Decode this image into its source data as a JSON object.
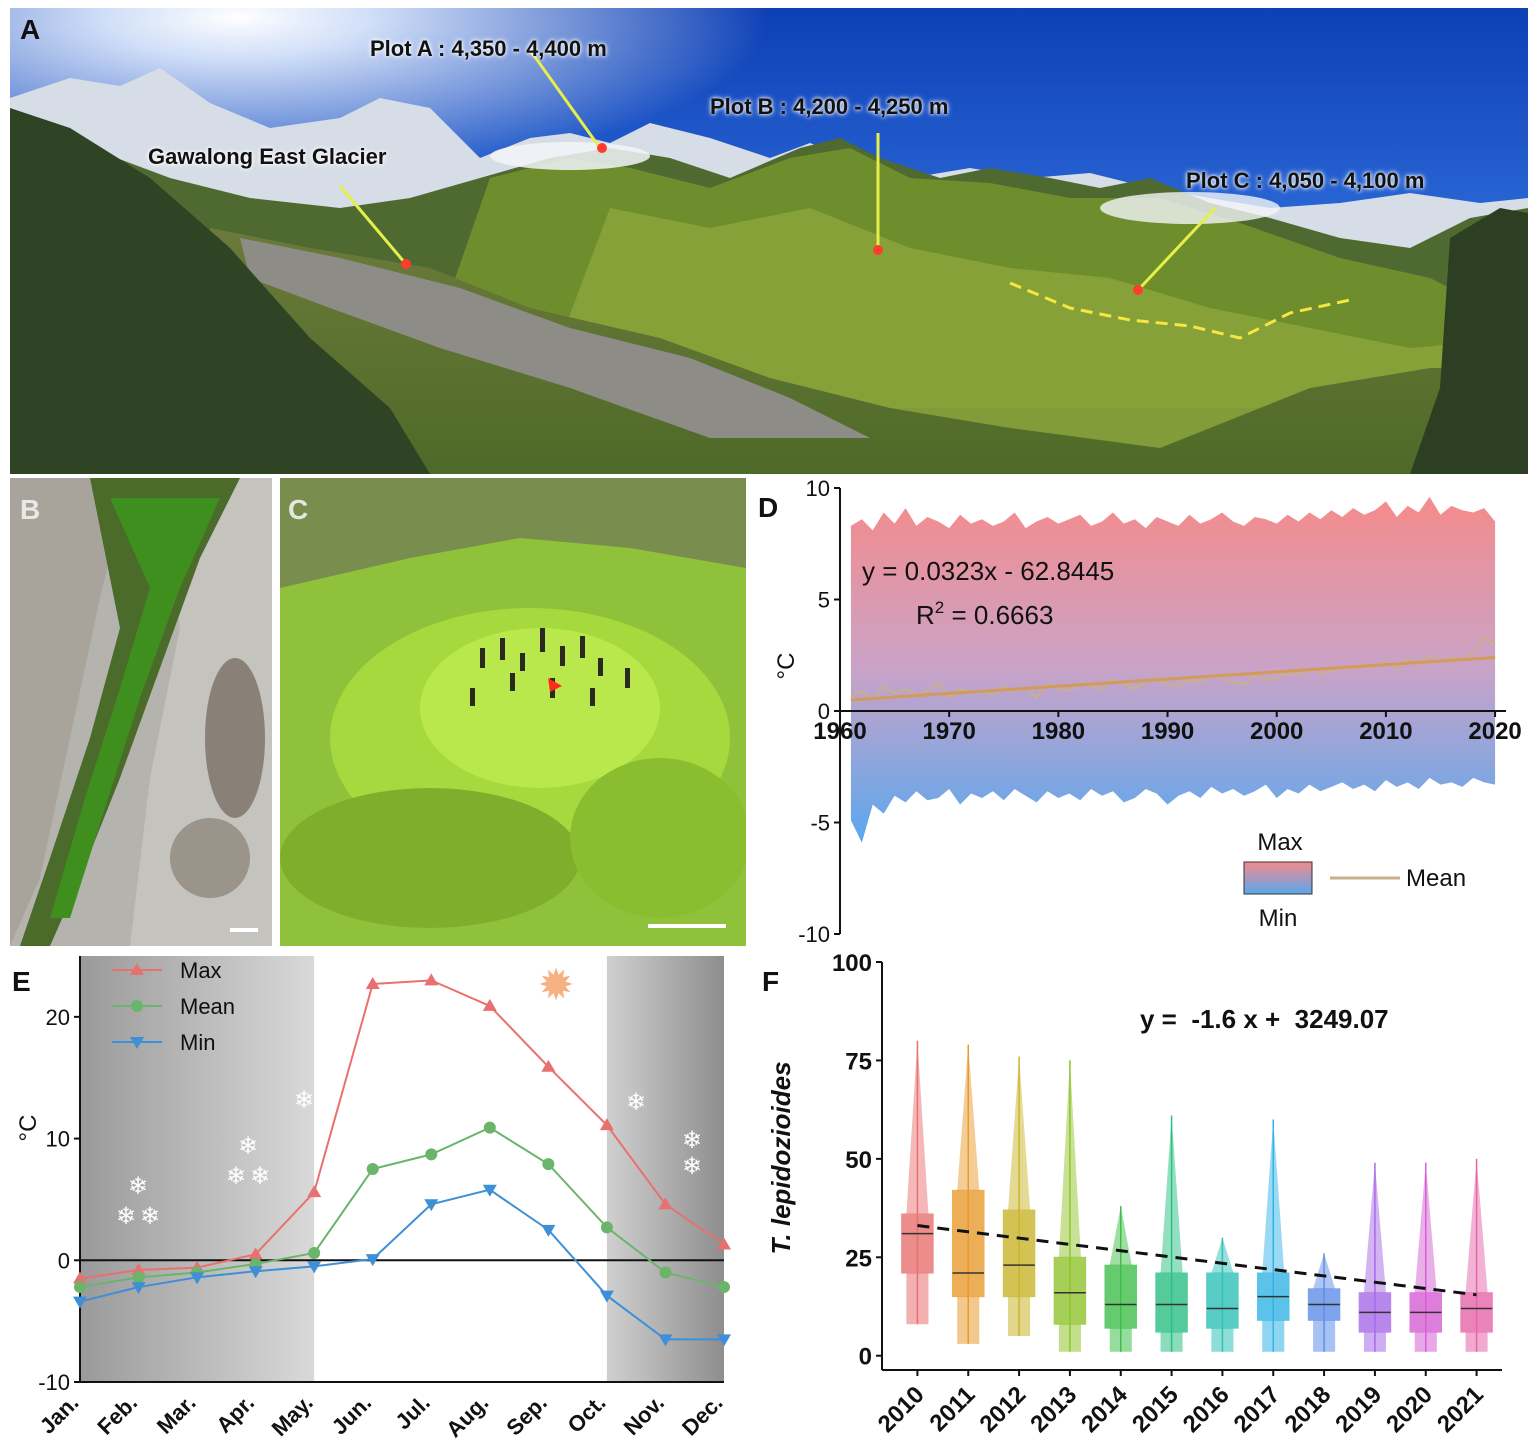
{
  "panels": {
    "a": "A",
    "b": "B",
    "c": "C",
    "d": "D",
    "e": "E",
    "f": "F"
  },
  "panelA": {
    "labels": {
      "plotA": "Plot A : 4,350 - 4,400 m",
      "plotB": "Plot B : 4,200 - 4,250 m",
      "plotC": "Plot C : 4,050 - 4,100 m",
      "glacier": "Gawalong East Glacier"
    }
  },
  "colors": {
    "max": "#e8716f",
    "mean": "#6ab56a",
    "min": "#3e8fd6",
    "trendD": "#d49a5a",
    "sky": "#1f56c9",
    "moss": "#7bbf2a"
  },
  "chart_data": [
    {
      "id": "D",
      "type": "area",
      "x": [
        1961,
        1962,
        1963,
        1964,
        1965,
        1966,
        1967,
        1968,
        1969,
        1970,
        1971,
        1972,
        1973,
        1974,
        1975,
        1976,
        1977,
        1978,
        1979,
        1980,
        1981,
        1982,
        1983,
        1984,
        1985,
        1986,
        1987,
        1988,
        1989,
        1990,
        1991,
        1992,
        1993,
        1994,
        1995,
        1996,
        1997,
        1998,
        1999,
        2000,
        2001,
        2002,
        2003,
        2004,
        2005,
        2006,
        2007,
        2008,
        2009,
        2010,
        2011,
        2012,
        2013,
        2014,
        2015,
        2016,
        2017,
        2018,
        2019,
        2020
      ],
      "series": [
        {
          "name": "Max",
          "values": [
            8.3,
            8.6,
            8.1,
            8.9,
            8.4,
            9.1,
            8.3,
            8.7,
            8.5,
            8.2,
            8.8,
            8.4,
            8.6,
            8.3,
            8.5,
            8.9,
            8.2,
            8.5,
            8.7,
            8.4,
            8.6,
            8.8,
            8.3,
            8.5,
            8.9,
            8.4,
            8.6,
            8.2,
            8.7,
            8.5,
            8.3,
            8.8,
            8.4,
            8.6,
            8.9,
            8.5,
            8.3,
            8.7,
            8.6,
            8.4,
            8.8,
            8.5,
            8.9,
            8.6,
            9.0,
            8.7,
            9.1,
            8.8,
            9.0,
            9.4,
            8.7,
            9.2,
            8.9,
            9.6,
            8.8,
            9.2,
            9.0,
            8.9,
            9.1,
            8.5
          ]
        },
        {
          "name": "Mean",
          "values": [
            0.6,
            0.9,
            0.5,
            1.1,
            0.8,
            1.0,
            0.7,
            0.9,
            1.3,
            0.6,
            1.0,
            0.8,
            0.9,
            0.7,
            1.1,
            0.9,
            1.0,
            0.6,
            1.2,
            1.0,
            0.9,
            1.3,
            1.1,
            1.0,
            1.4,
            1.2,
            1.0,
            1.3,
            1.5,
            1.2,
            1.1,
            1.4,
            1.3,
            1.6,
            1.5,
            1.3,
            1.2,
            1.6,
            1.4,
            1.5,
            1.7,
            1.6,
            1.9,
            1.7,
            1.8,
            2.0,
            1.9,
            2.1,
            2.0,
            2.2,
            1.9,
            2.3,
            2.1,
            2.5,
            2.2,
            2.4,
            2.3,
            2.6,
            3.3,
            3.0
          ]
        },
        {
          "name": "Min",
          "values": [
            -4.9,
            -5.9,
            -4.2,
            -4.6,
            -3.8,
            -4.1,
            -3.6,
            -4.0,
            -3.9,
            -3.5,
            -4.2,
            -3.7,
            -3.9,
            -3.6,
            -4.0,
            -3.5,
            -3.8,
            -4.1,
            -3.6,
            -3.9,
            -3.7,
            -4.0,
            -3.5,
            -3.8,
            -3.6,
            -4.1,
            -3.9,
            -3.5,
            -3.7,
            -4.2,
            -3.8,
            -3.6,
            -3.9,
            -3.4,
            -3.7,
            -3.5,
            -3.8,
            -3.6,
            -3.3,
            -3.9,
            -3.5,
            -3.7,
            -3.3,
            -3.6,
            -3.4,
            -3.2,
            -3.5,
            -3.3,
            -3.6,
            -3.1,
            -3.4,
            -3.2,
            -3.5,
            -3.0,
            -3.3,
            -3.2,
            -3.4,
            -3.0,
            -3.2,
            -3.3
          ]
        }
      ],
      "trend": {
        "slope": 0.0323,
        "intercept": -62.8445
      },
      "equation": "y = 0.0323x - 62.8445",
      "r2_prefix": "R",
      "r2_sup": "2",
      "r2_value": " = 0.6663",
      "ylabel": "°C",
      "xlim": [
        1960,
        2021
      ],
      "ylim": [
        -10,
        10
      ],
      "xticks": [
        1960,
        1970,
        1980,
        1990,
        2000,
        2010,
        2020
      ],
      "yticks": [
        10,
        5,
        0,
        -5,
        -10
      ],
      "legend": {
        "max": "Max",
        "min": "Min",
        "mean": "Mean"
      },
      "legend_position": "bottom-right"
    },
    {
      "id": "E",
      "type": "line",
      "categories": [
        "Jan.",
        "Feb.",
        "Mar.",
        "Apr.",
        "May.",
        "Jun.",
        "Jul.",
        "Aug.",
        "Sep.",
        "Oct.",
        "Nov.",
        "Dec."
      ],
      "series": [
        {
          "name": "Max",
          "marker": "triangle-up",
          "values": [
            -1.5,
            -0.8,
            -0.6,
            0.5,
            5.6,
            22.7,
            23.0,
            20.9,
            15.9,
            11.1,
            4.6,
            1.3
          ]
        },
        {
          "name": "Mean",
          "marker": "circle",
          "values": [
            -2.2,
            -1.4,
            -1.0,
            -0.3,
            0.6,
            7.5,
            8.7,
            10.9,
            7.9,
            2.7,
            -1.0,
            -2.2
          ]
        },
        {
          "name": "Min",
          "marker": "triangle-down",
          "values": [
            -3.4,
            -2.2,
            -1.4,
            -0.9,
            -0.5,
            0.1,
            4.6,
            5.8,
            2.5,
            -2.9,
            -6.5,
            -6.5
          ]
        }
      ],
      "ylabel": "°C",
      "ylim": [
        -10,
        25
      ],
      "yticks": [
        20,
        10,
        0,
        -10
      ],
      "shaded_months": [
        "Jan.",
        "Feb.",
        "Mar.",
        "Apr.",
        "May.",
        "Oct.",
        "Nov.",
        "Dec."
      ],
      "legend_position": "top-left"
    },
    {
      "id": "F",
      "type": "box",
      "categories": [
        "2010",
        "2011",
        "2012",
        "2013",
        "2014",
        "2015",
        "2016",
        "2017",
        "2018",
        "2019",
        "2020",
        "2021"
      ],
      "box_colors": [
        "#e8716f",
        "#e89a2e",
        "#c9b52a",
        "#8fc42c",
        "#3fbf4a",
        "#2bbf84",
        "#2fc1b8",
        "#33b3e6",
        "#5f8ee8",
        "#a76ae8",
        "#d65fd4",
        "#e665a8"
      ],
      "stats": [
        {
          "min": 8,
          "q1": 21,
          "median": 31,
          "q3": 36,
          "max": 80
        },
        {
          "min": 3,
          "q1": 15,
          "median": 21,
          "q3": 42,
          "max": 79
        },
        {
          "min": 5,
          "q1": 15,
          "median": 23,
          "q3": 37,
          "max": 76
        },
        {
          "min": 1,
          "q1": 8,
          "median": 16,
          "q3": 25,
          "max": 75
        },
        {
          "min": 1,
          "q1": 7,
          "median": 13,
          "q3": 23,
          "max": 38
        },
        {
          "min": 1,
          "q1": 6,
          "median": 13,
          "q3": 21,
          "max": 61
        },
        {
          "min": 1,
          "q1": 7,
          "median": 12,
          "q3": 21,
          "max": 30
        },
        {
          "min": 1,
          "q1": 9,
          "median": 15,
          "q3": 21,
          "max": 60
        },
        {
          "min": 1,
          "q1": 9,
          "median": 13,
          "q3": 17,
          "max": 26
        },
        {
          "min": 1,
          "q1": 6,
          "median": 11,
          "q3": 16,
          "max": 49
        },
        {
          "min": 1,
          "q1": 6,
          "median": 11,
          "q3": 16,
          "max": 49
        },
        {
          "min": 1,
          "q1": 6,
          "median": 12,
          "q3": 16,
          "max": 50
        }
      ],
      "trend": {
        "slope": -1.6,
        "intercept": 3249.07
      },
      "equation": "y =  -1.6 x +  3249.07",
      "ylabel": "T. lepidozioides",
      "ylim": [
        0,
        100
      ],
      "yticks": [
        100,
        75,
        50,
        25,
        0
      ]
    }
  ]
}
